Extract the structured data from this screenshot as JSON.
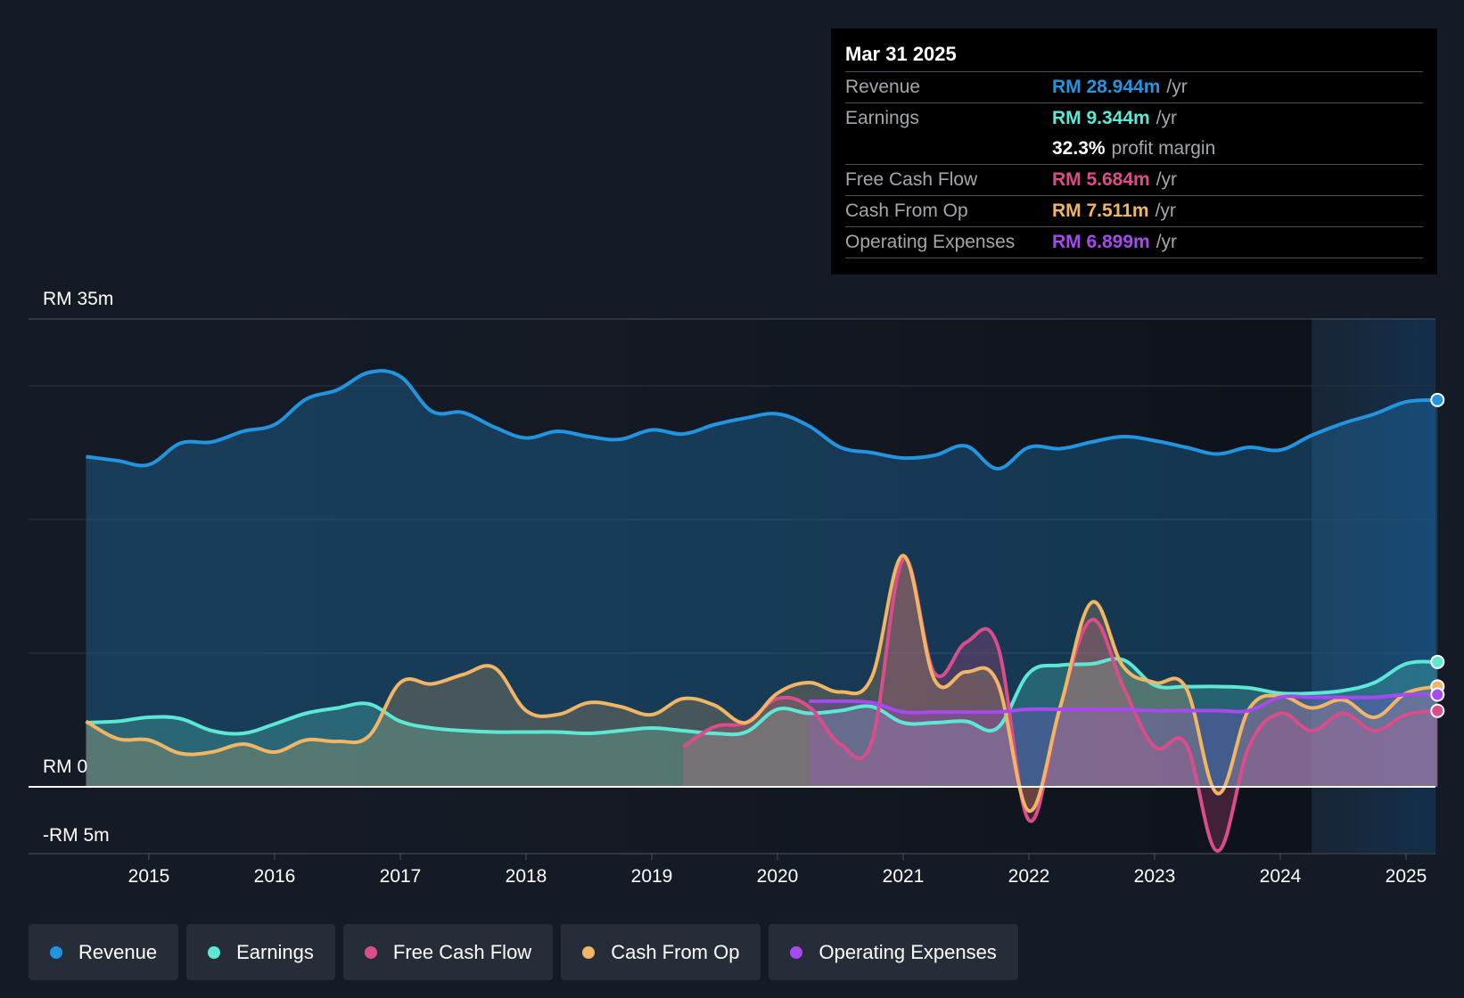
{
  "tooltip": {
    "date": "Mar 31 2025",
    "rows": [
      {
        "label": "Revenue",
        "value": "RM 28.944m",
        "unit": "/yr",
        "color": "#2394df"
      },
      {
        "label": "Earnings",
        "value": "RM 9.344m",
        "unit": "/yr",
        "color": "#5ce8d5"
      },
      {
        "label": "",
        "value": "32.3%",
        "unit": "profit margin",
        "color": "#ffffff"
      },
      {
        "label": "Free Cash Flow",
        "value": "RM 5.684m",
        "unit": "/yr",
        "color": "#d94d8a"
      },
      {
        "label": "Cash From Op",
        "value": "RM 7.511m",
        "unit": "/yr",
        "color": "#f0b565"
      },
      {
        "label": "Operating Expenses",
        "value": "RM 6.899m",
        "unit": "/yr",
        "color": "#a64af0"
      }
    ]
  },
  "legend": [
    {
      "label": "Revenue",
      "color": "#2394df"
    },
    {
      "label": "Earnings",
      "color": "#5ce8d5"
    },
    {
      "label": "Free Cash Flow",
      "color": "#d94d8a"
    },
    {
      "label": "Cash From Op",
      "color": "#f0b565"
    },
    {
      "label": "Operating Expenses",
      "color": "#a64af0"
    }
  ],
  "chart_data": {
    "type": "area",
    "title": "",
    "xlabel": "",
    "ylabel": "",
    "ylim": [
      -5,
      35
    ],
    "xlim": [
      2014.0,
      2025.25
    ],
    "y_tick_labels": [
      {
        "value": 35,
        "label": "RM 35m"
      },
      {
        "value": 0,
        "label": "RM 0"
      },
      {
        "value": -5,
        "label": "-RM 5m"
      }
    ],
    "x_ticks": [
      {
        "value": 2015,
        "label": "2015"
      },
      {
        "value": 2016,
        "label": "2016"
      },
      {
        "value": 2017,
        "label": "2017"
      },
      {
        "value": 2018,
        "label": "2018"
      },
      {
        "value": 2019,
        "label": "2019"
      },
      {
        "value": 2020,
        "label": "2020"
      },
      {
        "value": 2021,
        "label": "2021"
      },
      {
        "value": 2022,
        "label": "2022"
      },
      {
        "value": 2023,
        "label": "2023"
      },
      {
        "value": 2024,
        "label": "2024"
      },
      {
        "value": 2025,
        "label": "2025"
      }
    ],
    "forecast_start": 2024.25,
    "series": [
      {
        "name": "Revenue",
        "color": "#2394df",
        "points": [
          [
            2014.5,
            24.7
          ],
          [
            2014.75,
            24.4
          ],
          [
            2015.0,
            24.1
          ],
          [
            2015.25,
            25.7
          ],
          [
            2015.5,
            25.8
          ],
          [
            2015.75,
            26.6
          ],
          [
            2016.0,
            27.1
          ],
          [
            2016.25,
            29.0
          ],
          [
            2016.5,
            29.7
          ],
          [
            2016.75,
            31.0
          ],
          [
            2017.0,
            30.7
          ],
          [
            2017.25,
            28.1
          ],
          [
            2017.5,
            28.0
          ],
          [
            2017.75,
            26.9
          ],
          [
            2018.0,
            26.1
          ],
          [
            2018.25,
            26.6
          ],
          [
            2018.5,
            26.2
          ],
          [
            2018.75,
            26.0
          ],
          [
            2019.0,
            26.7
          ],
          [
            2019.25,
            26.4
          ],
          [
            2019.5,
            27.1
          ],
          [
            2019.75,
            27.6
          ],
          [
            2020.0,
            27.9
          ],
          [
            2020.25,
            27.0
          ],
          [
            2020.5,
            25.4
          ],
          [
            2020.75,
            25.0
          ],
          [
            2021.0,
            24.6
          ],
          [
            2021.25,
            24.8
          ],
          [
            2021.5,
            25.5
          ],
          [
            2021.75,
            23.8
          ],
          [
            2022.0,
            25.4
          ],
          [
            2022.25,
            25.3
          ],
          [
            2022.5,
            25.8
          ],
          [
            2022.75,
            26.2
          ],
          [
            2023.0,
            25.9
          ],
          [
            2023.25,
            25.4
          ],
          [
            2023.5,
            24.9
          ],
          [
            2023.75,
            25.4
          ],
          [
            2024.0,
            25.2
          ],
          [
            2024.25,
            26.3
          ],
          [
            2024.5,
            27.2
          ],
          [
            2024.75,
            27.9
          ],
          [
            2025.0,
            28.8
          ],
          [
            2025.25,
            28.944
          ]
        ]
      },
      {
        "name": "Earnings",
        "color": "#5ce8d5",
        "points": [
          [
            2014.5,
            4.8
          ],
          [
            2014.75,
            4.9
          ],
          [
            2015.0,
            5.2
          ],
          [
            2015.25,
            5.1
          ],
          [
            2015.5,
            4.2
          ],
          [
            2015.75,
            4.0
          ],
          [
            2016.0,
            4.7
          ],
          [
            2016.25,
            5.5
          ],
          [
            2016.5,
            5.9
          ],
          [
            2016.75,
            6.2
          ],
          [
            2017.0,
            4.9
          ],
          [
            2017.25,
            4.4
          ],
          [
            2017.5,
            4.2
          ],
          [
            2017.75,
            4.1
          ],
          [
            2018.0,
            4.1
          ],
          [
            2018.25,
            4.1
          ],
          [
            2018.5,
            4.0
          ],
          [
            2018.75,
            4.2
          ],
          [
            2019.0,
            4.4
          ],
          [
            2019.25,
            4.2
          ],
          [
            2019.5,
            4.0
          ],
          [
            2019.75,
            4.1
          ],
          [
            2020.0,
            5.8
          ],
          [
            2020.25,
            5.5
          ],
          [
            2020.5,
            5.7
          ],
          [
            2020.75,
            6.0
          ],
          [
            2021.0,
            4.8
          ],
          [
            2021.25,
            4.8
          ],
          [
            2021.5,
            4.9
          ],
          [
            2021.75,
            4.4
          ],
          [
            2022.0,
            8.5
          ],
          [
            2022.25,
            9.1
          ],
          [
            2022.5,
            9.2
          ],
          [
            2022.75,
            9.5
          ],
          [
            2023.0,
            7.6
          ],
          [
            2023.25,
            7.5
          ],
          [
            2023.5,
            7.5
          ],
          [
            2023.75,
            7.4
          ],
          [
            2024.0,
            7.0
          ],
          [
            2024.25,
            7.0
          ],
          [
            2024.5,
            7.2
          ],
          [
            2024.75,
            7.8
          ],
          [
            2025.0,
            9.2
          ],
          [
            2025.25,
            9.344
          ]
        ]
      },
      {
        "name": "Free Cash Flow",
        "color": "#d94d8a",
        "points": [
          [
            2019.25,
            3.0
          ],
          [
            2019.5,
            4.5
          ],
          [
            2019.75,
            4.8
          ],
          [
            2020.0,
            6.6
          ],
          [
            2020.25,
            6.0
          ],
          [
            2020.5,
            3.2
          ],
          [
            2020.75,
            3.4
          ],
          [
            2021.0,
            17.0
          ],
          [
            2021.25,
            8.5
          ],
          [
            2021.5,
            10.8
          ],
          [
            2021.75,
            10.6
          ],
          [
            2022.0,
            -2.5
          ],
          [
            2022.25,
            6.0
          ],
          [
            2022.5,
            12.5
          ],
          [
            2022.75,
            7.5
          ],
          [
            2023.0,
            3.0
          ],
          [
            2023.25,
            3.2
          ],
          [
            2023.5,
            -4.8
          ],
          [
            2023.75,
            3.0
          ],
          [
            2024.0,
            5.5
          ],
          [
            2024.25,
            4.2
          ],
          [
            2024.5,
            5.5
          ],
          [
            2024.75,
            4.2
          ],
          [
            2025.0,
            5.4
          ],
          [
            2025.25,
            5.684
          ]
        ]
      },
      {
        "name": "Cash From Op",
        "color": "#f0b565",
        "points": [
          [
            2014.5,
            4.9
          ],
          [
            2014.75,
            3.6
          ],
          [
            2015.0,
            3.5
          ],
          [
            2015.25,
            2.5
          ],
          [
            2015.5,
            2.6
          ],
          [
            2015.75,
            3.2
          ],
          [
            2016.0,
            2.6
          ],
          [
            2016.25,
            3.5
          ],
          [
            2016.5,
            3.4
          ],
          [
            2016.75,
            3.8
          ],
          [
            2017.0,
            7.8
          ],
          [
            2017.25,
            7.7
          ],
          [
            2017.5,
            8.4
          ],
          [
            2017.75,
            8.9
          ],
          [
            2018.0,
            5.7
          ],
          [
            2018.25,
            5.4
          ],
          [
            2018.5,
            6.3
          ],
          [
            2018.75,
            6.0
          ],
          [
            2019.0,
            5.4
          ],
          [
            2019.25,
            6.6
          ],
          [
            2019.5,
            6.1
          ],
          [
            2019.75,
            4.8
          ],
          [
            2020.0,
            7.0
          ],
          [
            2020.25,
            7.8
          ],
          [
            2020.5,
            7.1
          ],
          [
            2020.75,
            8.2
          ],
          [
            2021.0,
            17.3
          ],
          [
            2021.25,
            8.0
          ],
          [
            2021.5,
            8.6
          ],
          [
            2021.75,
            7.8
          ],
          [
            2022.0,
            -1.8
          ],
          [
            2022.25,
            6.0
          ],
          [
            2022.5,
            13.8
          ],
          [
            2022.75,
            9.0
          ],
          [
            2023.0,
            7.8
          ],
          [
            2023.25,
            7.4
          ],
          [
            2023.5,
            -0.5
          ],
          [
            2023.75,
            5.8
          ],
          [
            2024.0,
            6.8
          ],
          [
            2024.25,
            5.9
          ],
          [
            2024.5,
            6.5
          ],
          [
            2024.75,
            5.2
          ],
          [
            2025.0,
            7.0
          ],
          [
            2025.25,
            7.511
          ]
        ]
      },
      {
        "name": "Operating Expenses",
        "color": "#a64af0",
        "points": [
          [
            2020.25,
            6.4
          ],
          [
            2020.5,
            6.4
          ],
          [
            2020.75,
            6.3
          ],
          [
            2021.0,
            5.6
          ],
          [
            2021.25,
            5.6
          ],
          [
            2021.5,
            5.6
          ],
          [
            2021.75,
            5.6
          ],
          [
            2022.0,
            5.8
          ],
          [
            2022.25,
            5.8
          ],
          [
            2022.5,
            5.8
          ],
          [
            2022.75,
            5.8
          ],
          [
            2023.0,
            5.7
          ],
          [
            2023.25,
            5.7
          ],
          [
            2023.5,
            5.7
          ],
          [
            2023.75,
            5.7
          ],
          [
            2024.0,
            6.7
          ],
          [
            2024.25,
            6.7
          ],
          [
            2024.5,
            6.7
          ],
          [
            2024.75,
            6.7
          ],
          [
            2025.0,
            6.9
          ],
          [
            2025.25,
            6.899
          ]
        ]
      }
    ]
  }
}
